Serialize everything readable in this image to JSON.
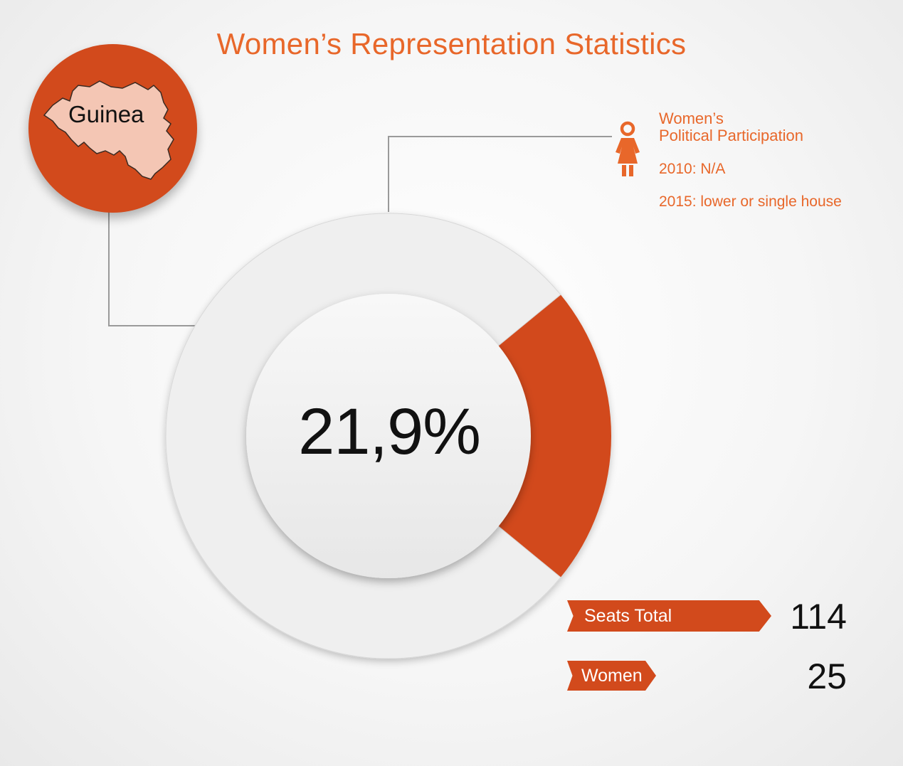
{
  "title": "Women’s Representation Statistics",
  "country": {
    "name": "Guinea"
  },
  "participation": {
    "heading_line1": "Women’s",
    "heading_line2": "Political Participation",
    "year_2010": "2010: N/A",
    "year_2015": "2015: lower or single house"
  },
  "stats": {
    "seats_label": "Seats Total",
    "seats_value": "114",
    "women_label": "Women",
    "women_value": "25"
  },
  "colors": {
    "accent": "#d24a1c",
    "title": "#e8672a",
    "ring": "#efefef",
    "text": "#111111"
  },
  "chart_data": {
    "type": "pie",
    "center_label": "21,9%",
    "slices": [
      {
        "label": "Women",
        "value": 21.9,
        "color": "#d24a1c"
      },
      {
        "label": "",
        "value": 78.1,
        "color": "#efefef"
      }
    ]
  }
}
